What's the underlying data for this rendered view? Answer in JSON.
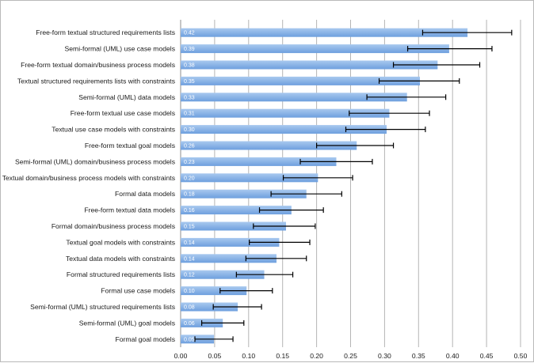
{
  "chart_data": {
    "type": "bar",
    "orientation": "horizontal",
    "title": "",
    "xlabel": "",
    "ylabel": "",
    "xlim": [
      0,
      0.5
    ],
    "xticks": [
      "0.00",
      "0.05",
      "0.10",
      "0.15",
      "0.20",
      "0.25",
      "0.30",
      "0.35",
      "0.40",
      "0.45",
      "0.50"
    ],
    "grid": true,
    "legend": "none",
    "colors": {
      "bar_top": "#a9c9ef",
      "bar_bottom": "#6e9fde",
      "error_bar": "#000000",
      "grid": "#b5b5b5"
    },
    "categories": [
      "Free-form textual structured requirements lists",
      "Semi-formal (UML) use case models",
      "Free-form textual domain/business process models",
      "Textual structured requirements lists with constraints",
      "Semi-formal (UML) data models",
      "Free-form textual use case models",
      "Textual use case models with constraints",
      "Free-form textual goal models",
      "Semi-formal (UML) domain/business process models",
      "Textual domain/business process models with constraints",
      "Formal data models",
      "Free-form textual data models",
      "Formal domain/business process models",
      "Textual goal models with constraints",
      "Textual data models with constraints",
      "Formal structured requirements lists",
      "Formal use case models",
      "Semi-formal (UML) structured requirements lists",
      "Semi-formal (UML) goal models",
      "Formal goal models"
    ],
    "values": [
      0.422,
      0.395,
      0.378,
      0.352,
      0.333,
      0.307,
      0.303,
      0.259,
      0.229,
      0.202,
      0.185,
      0.163,
      0.155,
      0.145,
      0.141,
      0.123,
      0.097,
      0.084,
      0.062,
      0.049
    ],
    "data_labels": [
      "0.42",
      "0.39",
      "0.38",
      "0.35",
      "0.33",
      "0.31",
      "0.30",
      "0.26",
      "0.23",
      "0.20",
      "0.18",
      "0.16",
      "0.15",
      "0.14",
      "0.14",
      "0.12",
      "0.10",
      "0.08",
      "0.06",
      "0.05"
    ],
    "error_low": [
      0.356,
      0.334,
      0.313,
      0.292,
      0.274,
      0.248,
      0.243,
      0.2,
      0.176,
      0.151,
      0.133,
      0.116,
      0.107,
      0.101,
      0.096,
      0.082,
      0.058,
      0.048,
      0.031,
      0.021
    ],
    "error_high": [
      0.487,
      0.458,
      0.44,
      0.41,
      0.39,
      0.366,
      0.36,
      0.313,
      0.282,
      0.253,
      0.237,
      0.21,
      0.198,
      0.19,
      0.185,
      0.165,
      0.135,
      0.119,
      0.093,
      0.077
    ]
  }
}
